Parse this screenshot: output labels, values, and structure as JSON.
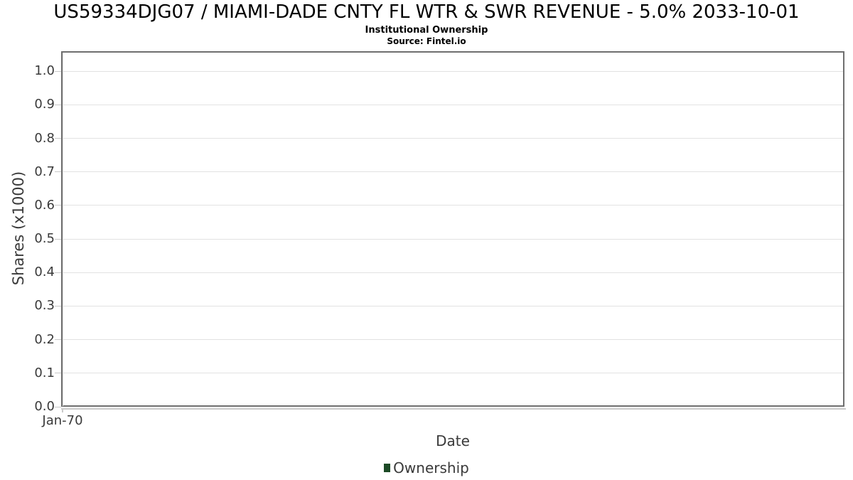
{
  "header": {
    "title": "US59334DJG07 / MIAMI-DADE CNTY FL WTR & SWR REVENUE - 5.0% 2033-10-01",
    "subtitle": "Institutional Ownership",
    "source": "Source: Fintel.io"
  },
  "chart_data": {
    "type": "line",
    "title": "US59334DJG07 / MIAMI-DADE CNTY FL WTR & SWR REVENUE - 5.0% 2033-10-01",
    "subtitle": "Institutional Ownership",
    "source": "Source: Fintel.io",
    "xlabel": "Date",
    "ylabel": "Shares (x1000)",
    "ylim": [
      0.0,
      1.06
    ],
    "yticks": [
      0.0,
      0.1,
      0.2,
      0.3,
      0.4,
      0.5,
      0.6,
      0.7,
      0.8,
      0.9,
      1.0
    ],
    "ytick_labels": [
      "0.0",
      "0.1",
      "0.2",
      "0.3",
      "0.4",
      "0.5",
      "0.6",
      "0.7",
      "0.8",
      "0.9",
      "1.0"
    ],
    "xtick_labels": [
      "Jan-70"
    ],
    "grid": true,
    "legend_position": "bottom",
    "series": [
      {
        "name": "Ownership",
        "color": "#1c4a26",
        "x": [],
        "values": []
      }
    ]
  },
  "legend": {
    "items": [
      {
        "label": "Ownership",
        "color": "#1c4a26"
      }
    ]
  },
  "colors": {
    "title_text": "#000000",
    "axis_text": "#3a3a3a",
    "plot_border": "#6f6f6f",
    "gridline": "#e2e2e2",
    "tick": "#c9c9c9",
    "legend_marker": "#1c4a26",
    "background": "#ffffff"
  }
}
